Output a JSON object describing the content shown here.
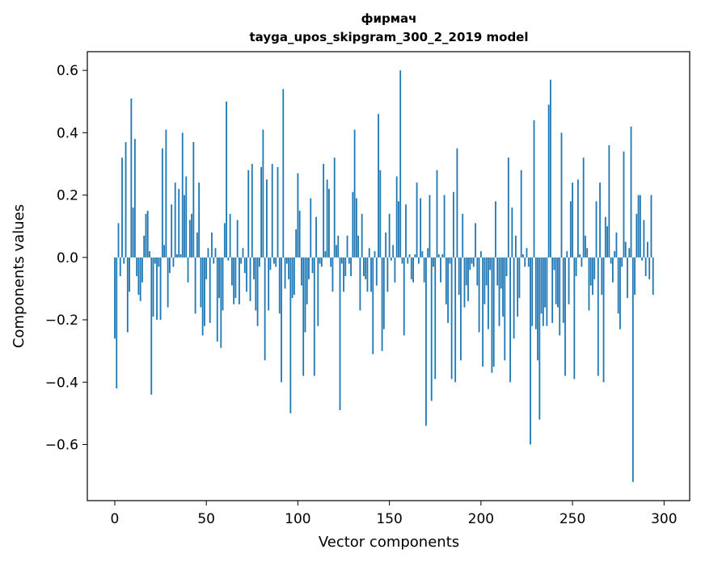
{
  "chart_data": {
    "type": "bar",
    "title": "фирмач",
    "subtitle": "tayga_upos_skipgram_300_2_2019 model",
    "xlabel": "Vector components",
    "ylabel": "Components values",
    "xlim": [
      -15,
      314
    ],
    "ylim": [
      -0.78,
      0.66
    ],
    "xticks": [
      0,
      50,
      100,
      150,
      200,
      250,
      300
    ],
    "xtick_labels": [
      "0",
      "50",
      "100",
      "150",
      "200",
      "250",
      "300"
    ],
    "yticks": [
      -0.6,
      -0.4,
      -0.2,
      0.0,
      0.2,
      0.4,
      0.6
    ],
    "ytick_labels": [
      "−0.6",
      "−0.4",
      "−0.2",
      "0.0",
      "0.2",
      "0.4",
      "0.6"
    ],
    "grid": false,
    "bar_color": "#1f77b4",
    "values": [
      -0.26,
      -0.42,
      0.11,
      -0.06,
      0.32,
      -0.02,
      0.37,
      -0.24,
      -0.11,
      0.51,
      0.16,
      0.38,
      -0.06,
      -0.12,
      -0.14,
      -0.08,
      0.07,
      0.14,
      0.15,
      0.02,
      -0.44,
      -0.19,
      -0.02,
      -0.2,
      -0.03,
      -0.2,
      0.35,
      0.04,
      0.41,
      -0.16,
      -0.05,
      0.17,
      -0.03,
      0.24,
      0.01,
      0.22,
      0.01,
      0.4,
      0.2,
      0.26,
      -0.08,
      0.12,
      0.14,
      0.37,
      -0.18,
      0.08,
      0.24,
      -0.16,
      -0.25,
      -0.22,
      -0.07,
      0.03,
      -0.21,
      0.08,
      -0.02,
      0.03,
      -0.27,
      -0.13,
      -0.29,
      -0.17,
      0.11,
      0.5,
      -0.01,
      0.14,
      -0.09,
      -0.15,
      -0.13,
      0.12,
      -0.15,
      -0.02,
      0.03,
      -0.05,
      -0.11,
      0.28,
      -0.14,
      0.3,
      -0.07,
      -0.17,
      -0.22,
      -0.03,
      0.29,
      0.41,
      -0.33,
      0.25,
      -0.17,
      -0.04,
      0.3,
      -0.02,
      -0.03,
      0.29,
      -0.18,
      -0.4,
      0.54,
      -0.1,
      -0.02,
      -0.07,
      -0.5,
      -0.13,
      -0.12,
      0.09,
      0.27,
      0.15,
      -0.09,
      -0.38,
      -0.24,
      -0.15,
      -0.07,
      0.19,
      -0.05,
      -0.38,
      0.13,
      -0.22,
      -0.02,
      -0.03,
      0.3,
      0.02,
      0.25,
      0.22,
      -0.03,
      -0.11,
      0.32,
      0.04,
      0.07,
      -0.49,
      -0.02,
      -0.11,
      -0.06,
      0.07,
      -0.02,
      -0.06,
      0.21,
      0.41,
      0.19,
      0.07,
      -0.17,
      0.14,
      -0.06,
      -0.07,
      -0.11,
      0.03,
      -0.11,
      -0.31,
      0.02,
      -0.09,
      0.46,
      0.28,
      -0.3,
      -0.23,
      0.08,
      -0.11,
      0.14,
      -0.01,
      0.04,
      -0.08,
      0.26,
      0.18,
      0.6,
      -0.02,
      -0.25,
      0.17,
      -0.02,
      0.01,
      -0.07,
      -0.08,
      0.01,
      0.24,
      -0.02,
      0.19,
      0.02,
      -0.08,
      -0.54,
      0.03,
      0.2,
      -0.46,
      -0.03,
      -0.39,
      0.28,
      0.01,
      -0.08,
      0.01,
      0.2,
      -0.15,
      -0.21,
      -0.02,
      -0.39,
      0.21,
      -0.4,
      0.35,
      -0.12,
      -0.33,
      0.14,
      -0.16,
      -0.09,
      -0.14,
      -0.04,
      -0.02,
      -0.03,
      0.11,
      -0.09,
      -0.24,
      0.02,
      -0.35,
      -0.15,
      -0.09,
      -0.23,
      -0.04,
      -0.37,
      -0.35,
      0.18,
      -0.09,
      -0.22,
      -0.1,
      -0.19,
      -0.33,
      -0.06,
      0.32,
      -0.4,
      0.16,
      -0.26,
      0.07,
      -0.19,
      -0.13,
      0.28,
      0.01,
      -0.03,
      0.03,
      -0.03,
      -0.6,
      -0.22,
      0.44,
      -0.23,
      -0.33,
      -0.52,
      -0.18,
      -0.22,
      -0.16,
      -0.22,
      0.49,
      0.57,
      -0.21,
      -0.04,
      -0.15,
      -0.16,
      -0.25,
      0.4,
      -0.21,
      -0.38,
      0.02,
      -0.15,
      0.18,
      0.24,
      -0.39,
      -0.06,
      0.25,
      0.01,
      -0.03,
      0.32,
      0.07,
      0.03,
      -0.17,
      -0.09,
      -0.12,
      -0.07,
      0.18,
      -0.38,
      0.24,
      -0.12,
      -0.4,
      0.13,
      0.1,
      0.36,
      -0.02,
      -0.08,
      0.02,
      0.08,
      -0.18,
      -0.23,
      -0.03,
      0.34,
      0.05,
      -0.13,
      0.03,
      0.42,
      -0.72,
      -0.12,
      0.14,
      0.2,
      0.2,
      -0.01,
      0.12,
      -0.06,
      0.05,
      -0.07,
      0.2,
      -0.12
    ]
  }
}
